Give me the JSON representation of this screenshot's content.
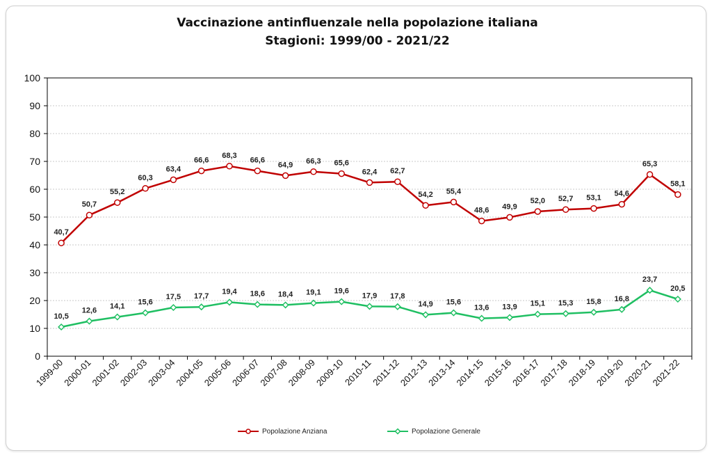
{
  "chart_data": {
    "type": "line",
    "title": "Vaccinazione antinfluenzale nella popolazione italiana",
    "subtitle": "Stagioni: 1999/00 - 2021/22",
    "xlabel": "",
    "ylabel": "",
    "ylim": [
      0,
      100
    ],
    "yticks": [
      0,
      10,
      20,
      30,
      40,
      50,
      60,
      70,
      80,
      90,
      100
    ],
    "grid": true,
    "legend_position": "bottom",
    "categories": [
      "1999-00",
      "2000-01",
      "2001-02",
      "2002-03",
      "2003-04",
      "2004-05",
      "2005-06",
      "2006-07",
      "2007-08",
      "2008-09",
      "2009-10",
      "2010-11",
      "2011-12",
      "2012-13",
      "2013-14",
      "2014-15",
      "2015-16",
      "2016-17",
      "2017-18",
      "2018-19",
      "2019-20",
      "2020-21",
      "2021-22"
    ],
    "series": [
      {
        "name": "Popolazione Anziana",
        "color": "#c00000",
        "marker": "circle",
        "values": [
          40.7,
          50.7,
          55.2,
          60.3,
          63.4,
          66.6,
          68.3,
          66.6,
          64.9,
          66.3,
          65.6,
          62.4,
          62.7,
          54.2,
          55.4,
          48.6,
          49.9,
          52.0,
          52.7,
          53.1,
          54.6,
          65.3,
          58.1
        ],
        "labels": [
          "40,7",
          "50,7",
          "55,2",
          "60,3",
          "63,4",
          "66,6",
          "68,3",
          "66,6",
          "64,9",
          "66,3",
          "65,6",
          "62,4",
          "62,7",
          "54,2",
          "55,4",
          "48,6",
          "49,9",
          "52,0",
          "52,7",
          "53,1",
          "54,6",
          "65,3",
          "58,1"
        ]
      },
      {
        "name": "Popolazione Generale",
        "color": "#1fbf62",
        "marker": "diamond",
        "values": [
          10.5,
          12.6,
          14.1,
          15.6,
          17.5,
          17.7,
          19.4,
          18.6,
          18.4,
          19.1,
          19.6,
          17.9,
          17.8,
          14.9,
          15.6,
          13.6,
          13.9,
          15.1,
          15.3,
          15.8,
          16.8,
          23.7,
          20.5
        ],
        "labels": [
          "10,5",
          "12,6",
          "14,1",
          "15,6",
          "17,5",
          "17,7",
          "19,4",
          "18,6",
          "18,4",
          "19,1",
          "19,6",
          "17,9",
          "17,8",
          "14,9",
          "15,6",
          "13,6",
          "13,9",
          "15,1",
          "15,3",
          "15,8",
          "16,8",
          "23,7",
          "20,5"
        ]
      }
    ]
  }
}
